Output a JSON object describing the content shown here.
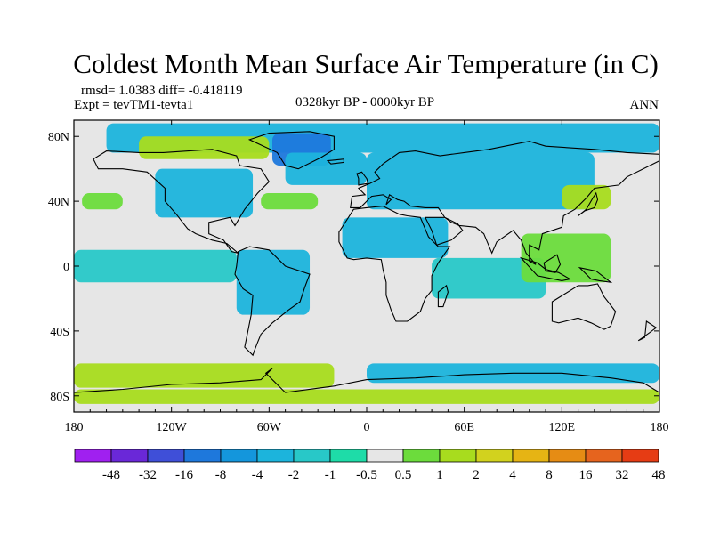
{
  "chart_data": {
    "type": "heatmap",
    "title": "Coldest Month Mean Surface Air Temperature (in C)",
    "stats_line": "rmsd= 1.0383 diff= -0.418119",
    "experiment": "Expt = tevTM1-tevta1",
    "period": "0328kyr BP - 0000kyr BP",
    "season": "ANN",
    "projection": "cylindrical equidistant",
    "x_range": [
      -180,
      180
    ],
    "y_range": [
      -90,
      90
    ],
    "x_ticks": [
      {
        "value": -180,
        "label": "180"
      },
      {
        "value": -120,
        "label": "120W"
      },
      {
        "value": -60,
        "label": "60W"
      },
      {
        "value": 0,
        "label": "0"
      },
      {
        "value": 60,
        "label": "60E"
      },
      {
        "value": 120,
        "label": "120E"
      },
      {
        "value": 180,
        "label": "180"
      }
    ],
    "y_ticks": [
      {
        "value": 80,
        "label": "80N"
      },
      {
        "value": 40,
        "label": "40N"
      },
      {
        "value": 0,
        "label": "0"
      },
      {
        "value": -40,
        "label": "40S"
      },
      {
        "value": -80,
        "label": "80S"
      }
    ],
    "colorbar": {
      "labels": [
        "-48",
        "-32",
        "-16",
        "-8",
        "-4",
        "-2",
        "-1",
        "-0.5",
        "0.5",
        "1",
        "2",
        "4",
        "8",
        "16",
        "32",
        "48"
      ],
      "colors": [
        "#a020f0",
        "#6a28d8",
        "#3f4fd8",
        "#1e78dc",
        "#1496dc",
        "#1cb4dc",
        "#28c8c8",
        "#1edca8",
        "#e6e6e6",
        "#6cdc3c",
        "#a8dc1e",
        "#d2d21e",
        "#e6b414",
        "#e68c14",
        "#e6641e",
        "#e63c14"
      ]
    },
    "regions": [
      {
        "name": "arctic-ocean-cooling",
        "lon": [
          -160,
          180
        ],
        "lat": [
          70,
          88
        ],
        "value": -3
      },
      {
        "name": "greenland-cooling",
        "lon": [
          -58,
          -22
        ],
        "lat": [
          62,
          82
        ],
        "value": -8
      },
      {
        "name": "canada-arctic-warming",
        "lon": [
          -140,
          -60
        ],
        "lat": [
          66,
          80
        ],
        "value": 2
      },
      {
        "name": "north-atlantic-cooling",
        "lon": [
          -50,
          0
        ],
        "lat": [
          50,
          70
        ],
        "value": -3
      },
      {
        "name": "north-america-cooling",
        "lon": [
          -130,
          -70
        ],
        "lat": [
          30,
          60
        ],
        "value": -2
      },
      {
        "name": "eurasia-cooling",
        "lon": [
          0,
          140
        ],
        "lat": [
          35,
          70
        ],
        "value": -2
      },
      {
        "name": "east-asia-warming",
        "lon": [
          120,
          150
        ],
        "lat": [
          35,
          50
        ],
        "value": 2
      },
      {
        "name": "north-pacific-warming",
        "lon": [
          -175,
          -150
        ],
        "lat": [
          35,
          45
        ],
        "value": 1
      },
      {
        "name": "mid-atlantic-warming",
        "lon": [
          -65,
          -30
        ],
        "lat": [
          35,
          45
        ],
        "value": 1
      },
      {
        "name": "north-africa-cooling",
        "lon": [
          -15,
          50
        ],
        "lat": [
          5,
          30
        ],
        "value": -2
      },
      {
        "name": "tropical-pacific-cooling",
        "lon": [
          -180,
          -80
        ],
        "lat": [
          -10,
          10
        ],
        "value": -1
      },
      {
        "name": "south-america-cooling",
        "lon": [
          -80,
          -35
        ],
        "lat": [
          -30,
          10
        ],
        "value": -2
      },
      {
        "name": "indian-ocean-cooling",
        "lon": [
          40,
          110
        ],
        "lat": [
          -20,
          5
        ],
        "value": -1
      },
      {
        "name": "maritime-continent-warming",
        "lon": [
          95,
          150
        ],
        "lat": [
          -10,
          20
        ],
        "value": 1
      },
      {
        "name": "southern-ocean-warming",
        "lon": [
          -180,
          -20
        ],
        "lat": [
          -75,
          -60
        ],
        "value": 2
      },
      {
        "name": "southern-ocean-cooling",
        "lon": [
          0,
          180
        ],
        "lat": [
          -72,
          -60
        ],
        "value": -2
      },
      {
        "name": "antarctica-warming",
        "lon": [
          -180,
          180
        ],
        "lat": [
          -85,
          -76
        ],
        "value": 2
      }
    ]
  }
}
